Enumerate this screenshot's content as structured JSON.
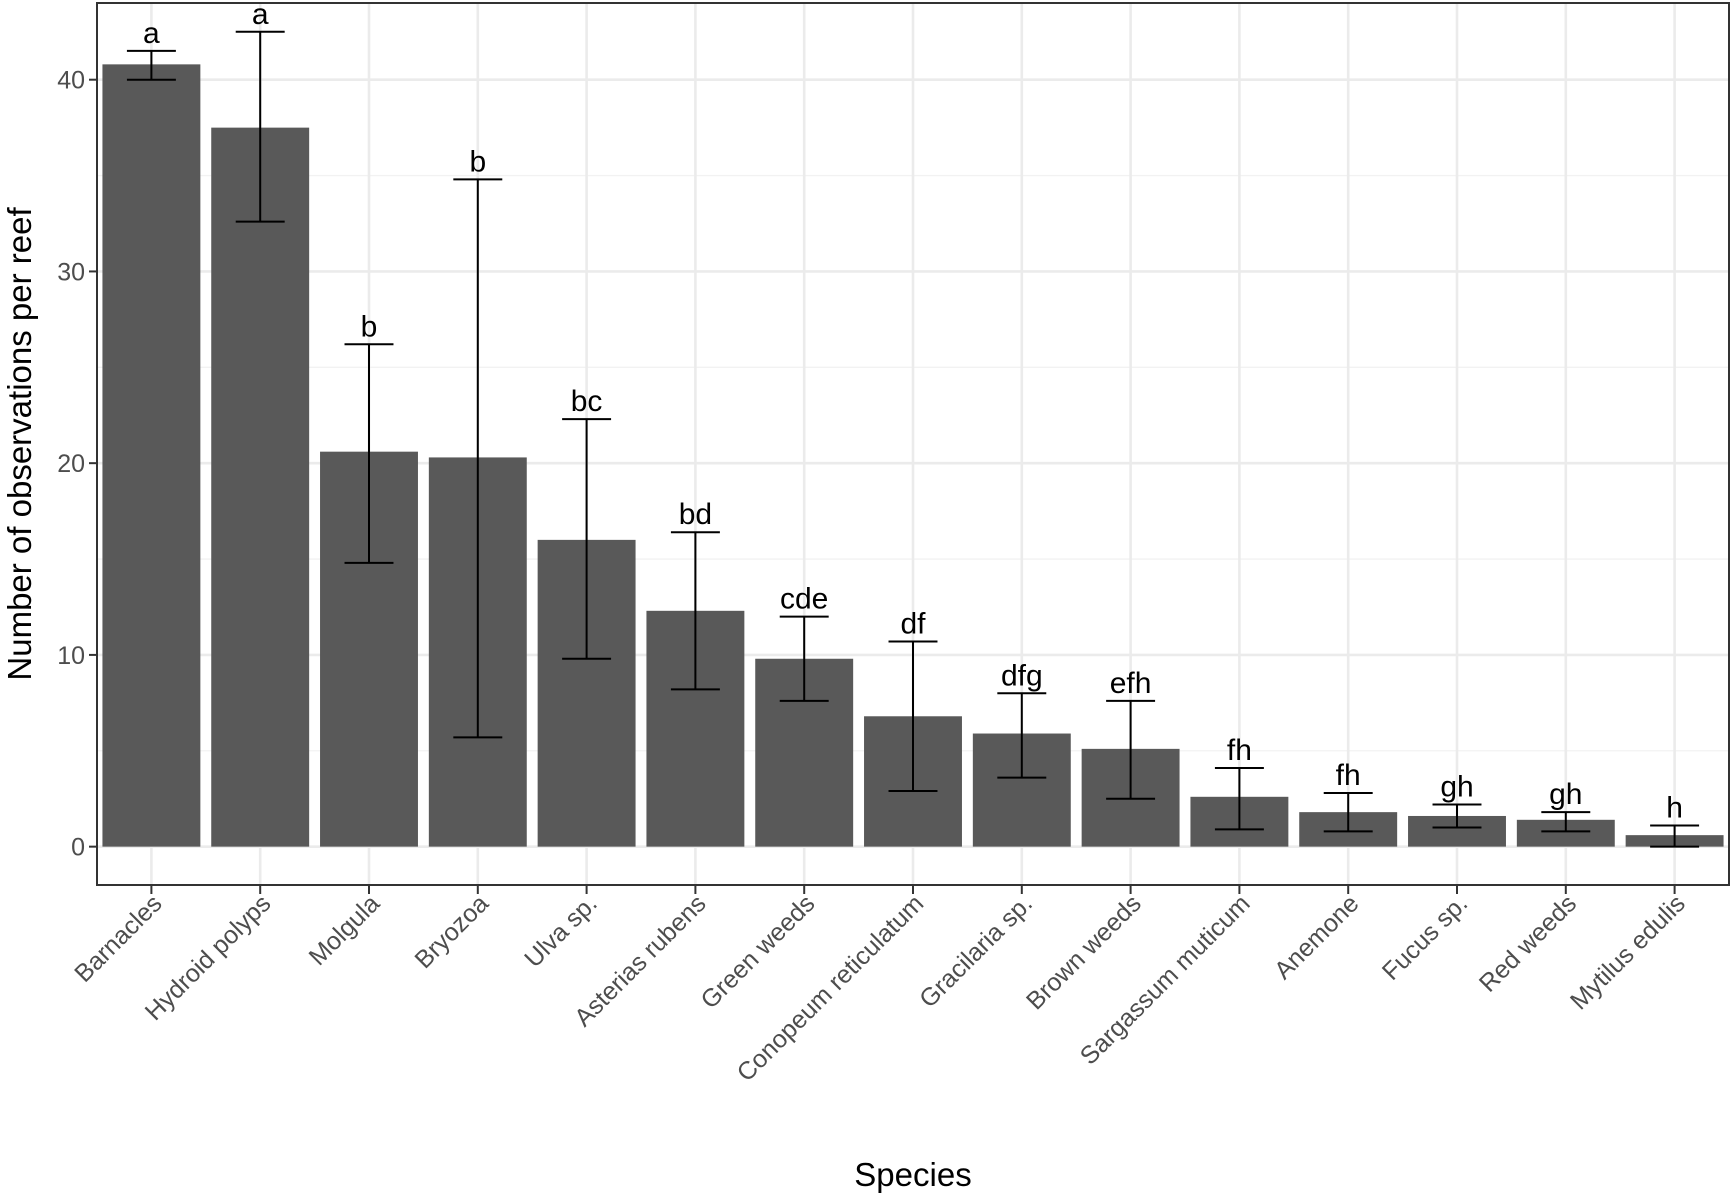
{
  "chart_data": {
    "type": "bar",
    "xlabel": "Species",
    "ylabel": "Number of observations per reef",
    "ylim": [
      -2,
      44
    ],
    "y_ticks": [
      0,
      10,
      20,
      30,
      40
    ],
    "y_tick_labels": [
      "0",
      "10",
      "20",
      "30",
      "40"
    ],
    "grid": true,
    "bar_color": "#595959",
    "categories": [
      "Barnacles",
      "Hydroid polyps",
      "Molgula",
      "Bryozoa",
      "Ulva sp.",
      "Asterias rubens",
      "Green weeds",
      "Conopeum reticulatum",
      "Gracilaria sp.",
      "Brown weeds",
      "Sargassum muticum",
      "Anemone",
      "Fucus sp.",
      "Red weeds",
      "Mytilus edulis"
    ],
    "values": [
      40.8,
      37.5,
      20.6,
      20.3,
      16.0,
      12.3,
      9.8,
      6.8,
      5.9,
      5.1,
      2.6,
      1.8,
      1.6,
      1.4,
      0.6
    ],
    "error_low": [
      40.0,
      32.6,
      14.8,
      5.7,
      9.8,
      8.2,
      7.6,
      2.9,
      3.6,
      2.5,
      0.9,
      0.8,
      1.0,
      0.8,
      0.0
    ],
    "error_high": [
      41.5,
      42.5,
      26.2,
      34.8,
      22.3,
      16.4,
      12.0,
      10.7,
      8.0,
      7.6,
      4.1,
      2.8,
      2.2,
      1.8,
      1.1
    ],
    "significance_labels": [
      "a",
      "a",
      "b",
      "b",
      "bc",
      "bd",
      "cde",
      "df",
      "dfg",
      "efh",
      "fh",
      "fh",
      "gh",
      "gh",
      "h"
    ]
  }
}
